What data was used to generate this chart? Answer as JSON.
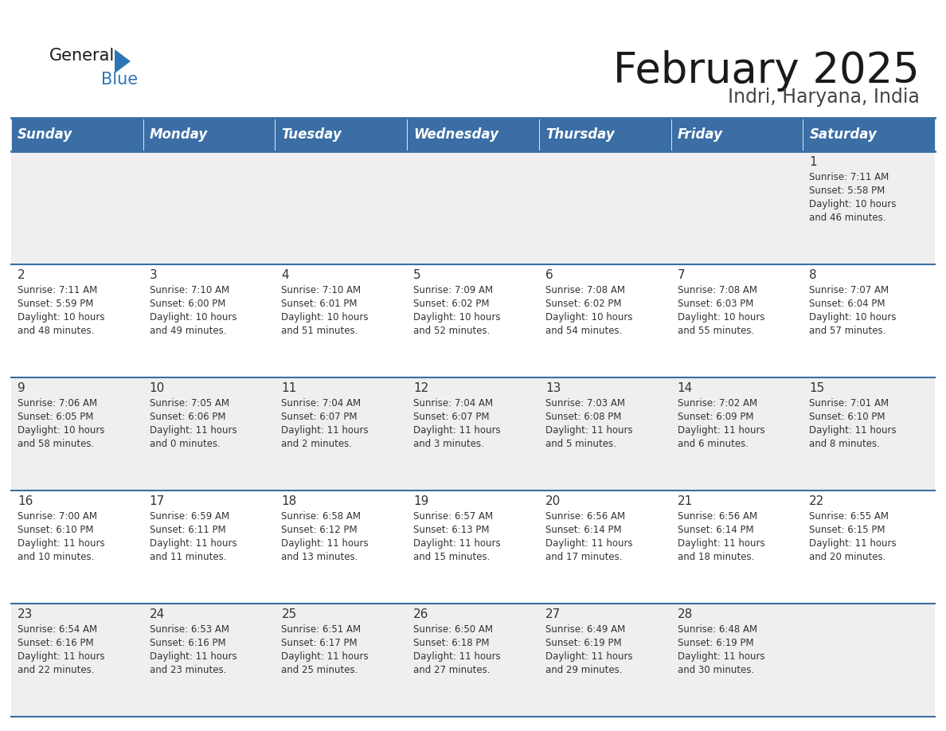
{
  "title": "February 2025",
  "subtitle": "Indri, Haryana, India",
  "header_bg": "#3A6EA5",
  "header_text_color": "#FFFFFF",
  "cell_bg_row0": "#EFEFEF",
  "cell_bg_row1": "#FFFFFF",
  "cell_bg_row2": "#EFEFEF",
  "cell_bg_row3": "#FFFFFF",
  "cell_bg_row4": "#EFEFEF",
  "day_number_color": "#333333",
  "grid_line_color": "#3A6EA5",
  "body_text_color": "#333333",
  "days_of_week": [
    "Sunday",
    "Monday",
    "Tuesday",
    "Wednesday",
    "Thursday",
    "Friday",
    "Saturday"
  ],
  "weeks": [
    [
      {
        "day": 0
      },
      {
        "day": 0
      },
      {
        "day": 0
      },
      {
        "day": 0
      },
      {
        "day": 0
      },
      {
        "day": 0
      },
      {
        "day": 1,
        "sunrise": "7:11 AM",
        "sunset": "5:58 PM",
        "daylight_line1": "10 hours",
        "daylight_line2": "and 46 minutes."
      }
    ],
    [
      {
        "day": 2,
        "sunrise": "7:11 AM",
        "sunset": "5:59 PM",
        "daylight_line1": "10 hours",
        "daylight_line2": "and 48 minutes."
      },
      {
        "day": 3,
        "sunrise": "7:10 AM",
        "sunset": "6:00 PM",
        "daylight_line1": "10 hours",
        "daylight_line2": "and 49 minutes."
      },
      {
        "day": 4,
        "sunrise": "7:10 AM",
        "sunset": "6:01 PM",
        "daylight_line1": "10 hours",
        "daylight_line2": "and 51 minutes."
      },
      {
        "day": 5,
        "sunrise": "7:09 AM",
        "sunset": "6:02 PM",
        "daylight_line1": "10 hours",
        "daylight_line2": "and 52 minutes."
      },
      {
        "day": 6,
        "sunrise": "7:08 AM",
        "sunset": "6:02 PM",
        "daylight_line1": "10 hours",
        "daylight_line2": "and 54 minutes."
      },
      {
        "day": 7,
        "sunrise": "7:08 AM",
        "sunset": "6:03 PM",
        "daylight_line1": "10 hours",
        "daylight_line2": "and 55 minutes."
      },
      {
        "day": 8,
        "sunrise": "7:07 AM",
        "sunset": "6:04 PM",
        "daylight_line1": "10 hours",
        "daylight_line2": "and 57 minutes."
      }
    ],
    [
      {
        "day": 9,
        "sunrise": "7:06 AM",
        "sunset": "6:05 PM",
        "daylight_line1": "10 hours",
        "daylight_line2": "and 58 minutes."
      },
      {
        "day": 10,
        "sunrise": "7:05 AM",
        "sunset": "6:06 PM",
        "daylight_line1": "11 hours",
        "daylight_line2": "and 0 minutes."
      },
      {
        "day": 11,
        "sunrise": "7:04 AM",
        "sunset": "6:07 PM",
        "daylight_line1": "11 hours",
        "daylight_line2": "and 2 minutes."
      },
      {
        "day": 12,
        "sunrise": "7:04 AM",
        "sunset": "6:07 PM",
        "daylight_line1": "11 hours",
        "daylight_line2": "and 3 minutes."
      },
      {
        "day": 13,
        "sunrise": "7:03 AM",
        "sunset": "6:08 PM",
        "daylight_line1": "11 hours",
        "daylight_line2": "and 5 minutes."
      },
      {
        "day": 14,
        "sunrise": "7:02 AM",
        "sunset": "6:09 PM",
        "daylight_line1": "11 hours",
        "daylight_line2": "and 6 minutes."
      },
      {
        "day": 15,
        "sunrise": "7:01 AM",
        "sunset": "6:10 PM",
        "daylight_line1": "11 hours",
        "daylight_line2": "and 8 minutes."
      }
    ],
    [
      {
        "day": 16,
        "sunrise": "7:00 AM",
        "sunset": "6:10 PM",
        "daylight_line1": "11 hours",
        "daylight_line2": "and 10 minutes."
      },
      {
        "day": 17,
        "sunrise": "6:59 AM",
        "sunset": "6:11 PM",
        "daylight_line1": "11 hours",
        "daylight_line2": "and 11 minutes."
      },
      {
        "day": 18,
        "sunrise": "6:58 AM",
        "sunset": "6:12 PM",
        "daylight_line1": "11 hours",
        "daylight_line2": "and 13 minutes."
      },
      {
        "day": 19,
        "sunrise": "6:57 AM",
        "sunset": "6:13 PM",
        "daylight_line1": "11 hours",
        "daylight_line2": "and 15 minutes."
      },
      {
        "day": 20,
        "sunrise": "6:56 AM",
        "sunset": "6:14 PM",
        "daylight_line1": "11 hours",
        "daylight_line2": "and 17 minutes."
      },
      {
        "day": 21,
        "sunrise": "6:56 AM",
        "sunset": "6:14 PM",
        "daylight_line1": "11 hours",
        "daylight_line2": "and 18 minutes."
      },
      {
        "day": 22,
        "sunrise": "6:55 AM",
        "sunset": "6:15 PM",
        "daylight_line1": "11 hours",
        "daylight_line2": "and 20 minutes."
      }
    ],
    [
      {
        "day": 23,
        "sunrise": "6:54 AM",
        "sunset": "6:16 PM",
        "daylight_line1": "11 hours",
        "daylight_line2": "and 22 minutes."
      },
      {
        "day": 24,
        "sunrise": "6:53 AM",
        "sunset": "6:16 PM",
        "daylight_line1": "11 hours",
        "daylight_line2": "and 23 minutes."
      },
      {
        "day": 25,
        "sunrise": "6:51 AM",
        "sunset": "6:17 PM",
        "daylight_line1": "11 hours",
        "daylight_line2": "and 25 minutes."
      },
      {
        "day": 26,
        "sunrise": "6:50 AM",
        "sunset": "6:18 PM",
        "daylight_line1": "11 hours",
        "daylight_line2": "and 27 minutes."
      },
      {
        "day": 27,
        "sunrise": "6:49 AM",
        "sunset": "6:19 PM",
        "daylight_line1": "11 hours",
        "daylight_line2": "and 29 minutes."
      },
      {
        "day": 28,
        "sunrise": "6:48 AM",
        "sunset": "6:19 PM",
        "daylight_line1": "11 hours",
        "daylight_line2": "and 30 minutes."
      },
      {
        "day": 0
      }
    ]
  ]
}
